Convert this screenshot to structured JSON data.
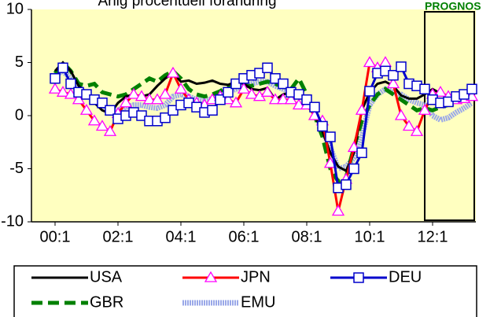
{
  "chart_data": {
    "type": "line",
    "title": "Årlig procentuell förändring",
    "annotation": "PROGNOS",
    "annotation_color": "#008000",
    "background": "#ffffc0",
    "categories": [
      "00:1",
      null,
      null,
      null,
      null,
      null,
      null,
      null,
      "02:1",
      null,
      null,
      null,
      null,
      null,
      null,
      null,
      "04:1",
      null,
      null,
      null,
      null,
      null,
      null,
      null,
      "06:1",
      null,
      null,
      null,
      null,
      null,
      null,
      null,
      "08:1",
      null,
      null,
      null,
      null,
      null,
      null,
      null,
      "10:1",
      null,
      null,
      null,
      null,
      null,
      null,
      null,
      "12:1",
      null,
      null,
      null,
      null,
      null
    ],
    "ylim": [
      -10,
      10
    ],
    "yticks": [
      -10,
      -5,
      0,
      5,
      10
    ],
    "grid": false,
    "series": [
      {
        "name": "USA",
        "color": "#000000",
        "style": "solid",
        "values": [
          4.2,
          5.0,
          4.2,
          2.8,
          2.2,
          1.2,
          0.5,
          0.2,
          1.2,
          1.8,
          2.0,
          1.8,
          2.0,
          2.8,
          3.5,
          4.0,
          3.2,
          3.3,
          3.0,
          3.1,
          3.3,
          3.0,
          2.9,
          3.2,
          3.0,
          2.5,
          2.4,
          2.6,
          1.5,
          2.0,
          2.2,
          2.3,
          1.5,
          0.0,
          -1.5,
          -3.5,
          -4.8,
          -5.2,
          -3.5,
          0.5,
          2.2,
          3.0,
          3.2,
          2.8,
          1.9,
          1.6,
          1.6,
          2.0,
          2.5,
          2.1,
          1.7,
          1.8,
          2.0,
          2.2
        ]
      },
      {
        "name": "JPN",
        "color": "#ff0000",
        "style": "solid",
        "marker": "triangle",
        "marker_color": "#ff00ff",
        "values": [
          2.5,
          2.2,
          2.0,
          1.5,
          0.5,
          -0.5,
          -1.0,
          -1.5,
          0.2,
          1.2,
          2.0,
          1.8,
          1.5,
          1.5,
          2.0,
          4.0,
          2.5,
          1.5,
          1.2,
          1.0,
          1.5,
          1.8,
          1.5,
          1.2,
          2.5,
          2.0,
          1.8,
          2.2,
          1.5,
          1.5,
          1.5,
          1.0,
          1.0,
          0.0,
          -0.5,
          -4.5,
          -9.0,
          -6.0,
          -3.0,
          0.5,
          5.0,
          4.5,
          5.0,
          3.0,
          0.0,
          -1.0,
          -1.5,
          0.5,
          2.0,
          2.2,
          1.8,
          1.5,
          1.6,
          1.8
        ]
      },
      {
        "name": "DEU",
        "color": "#0000cc",
        "style": "solid",
        "marker": "square",
        "marker_color": "#0000cc",
        "values": [
          3.5,
          4.5,
          3.0,
          2.2,
          2.0,
          1.5,
          1.2,
          0.5,
          -0.3,
          0.0,
          0.3,
          0.0,
          -0.5,
          -0.5,
          -0.2,
          0.5,
          1.0,
          1.2,
          0.8,
          0.3,
          0.5,
          1.5,
          2.2,
          3.0,
          3.5,
          3.8,
          4.0,
          4.5,
          3.5,
          3.0,
          2.2,
          2.0,
          1.5,
          0.8,
          -1.0,
          -2.0,
          -6.8,
          -6.5,
          -5.0,
          -3.5,
          2.3,
          4.0,
          4.2,
          3.8,
          4.6,
          3.0,
          2.8,
          2.5,
          1.5,
          1.2,
          1.3,
          1.8,
          2.0,
          2.5
        ]
      },
      {
        "name": "GBR",
        "color": "#008000",
        "style": "dashed",
        "values": [
          4.0,
          5.0,
          4.2,
          3.0,
          2.8,
          3.0,
          2.2,
          2.0,
          1.8,
          2.0,
          2.5,
          3.0,
          3.5,
          3.2,
          3.8,
          4.2,
          3.5,
          2.5,
          2.0,
          1.8,
          2.0,
          2.3,
          2.8,
          3.0,
          2.8,
          2.8,
          3.0,
          3.2,
          3.0,
          2.7,
          2.5,
          3.5,
          2.0,
          0.0,
          -2.0,
          -5.0,
          -6.2,
          -5.8,
          -3.0,
          -0.5,
          1.0,
          2.0,
          2.5,
          2.0,
          1.5,
          1.0,
          0.5,
          0.7,
          0.5,
          0.8,
          1.0,
          1.2,
          1.5,
          2.0
        ]
      },
      {
        "name": "EMU",
        "color": "#9aa8e8",
        "style": "thick",
        "values": [
          3.8,
          4.2,
          3.5,
          2.5,
          2.0,
          1.5,
          1.0,
          0.5,
          0.5,
          0.8,
          1.0,
          1.0,
          0.8,
          0.7,
          1.0,
          1.8,
          2.0,
          1.8,
          1.5,
          1.4,
          1.6,
          1.8,
          2.2,
          2.5,
          2.8,
          3.0,
          3.2,
          3.2,
          2.8,
          2.5,
          2.2,
          2.0,
          1.2,
          0.5,
          -1.5,
          -3.0,
          -5.0,
          -4.8,
          -4.0,
          -2.0,
          1.0,
          2.0,
          2.5,
          2.2,
          2.0,
          1.5,
          1.2,
          1.0,
          0.0,
          -0.4,
          -0.2,
          0.3,
          0.7,
          1.2
        ]
      }
    ]
  }
}
